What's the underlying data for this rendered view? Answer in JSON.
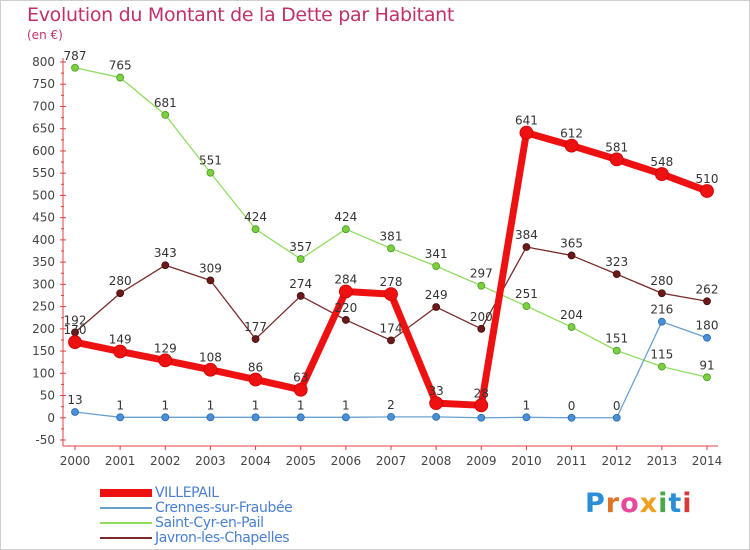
{
  "header": {
    "title": "Evolution du Montant de la Dette par Habitant",
    "unit": "(en €)"
  },
  "logo": {
    "text": "Proxiti",
    "colors": [
      "#2a8fd6",
      "#e0732a",
      "#e84a9a",
      "#f0a020",
      "#4aa84a",
      "#2a8fd6",
      "#d63a3a"
    ]
  },
  "chart_data": {
    "type": "line",
    "title": "Evolution du Montant de la Dette par Habitant",
    "ylabel": "(en €)",
    "xlabel": "",
    "ylim": [
      -50,
      800
    ],
    "yticks": [
      -50,
      0,
      50,
      100,
      150,
      200,
      250,
      300,
      350,
      400,
      450,
      500,
      550,
      600,
      650,
      700,
      750,
      800
    ],
    "grid": false,
    "legend_position": "bottom-left",
    "x": [
      "2000",
      "2001",
      "2002",
      "2003",
      "2004",
      "2005",
      "2006",
      "2007",
      "2008",
      "2009",
      "2010",
      "2011",
      "2012",
      "2013",
      "2014"
    ],
    "series": [
      {
        "name": "VILLEPAIL",
        "color": "#ee1111",
        "values": [
          170,
          149,
          129,
          108,
          86,
          63,
          284,
          278,
          33,
          28,
          641,
          612,
          581,
          548,
          510
        ]
      },
      {
        "name": "Crennes-sur-Fraubée",
        "color": "#6aa0d0",
        "values": [
          13,
          1,
          1,
          1,
          1,
          1,
          1,
          2,
          2,
          0,
          1,
          0,
          0,
          216,
          180
        ]
      },
      {
        "name": "Saint-Cyr-en-Pail",
        "color": "#90dd60",
        "values": [
          787,
          765,
          681,
          551,
          424,
          357,
          424,
          381,
          341,
          297,
          251,
          204,
          151,
          115,
          91
        ]
      },
      {
        "name": "Javron-les-Chapelles",
        "color": "#7a2a2a",
        "values": [
          192,
          280,
          343,
          309,
          177,
          274,
          220,
          174,
          249,
          200,
          384,
          365,
          323,
          280,
          262
        ]
      }
    ],
    "data_labels": [
      [
        "170",
        "149",
        "129",
        "108",
        "86",
        "63",
        "284",
        "278",
        "33",
        "28",
        "641",
        "612",
        "581",
        "548",
        "510"
      ],
      [
        "13",
        "1",
        "1",
        "1",
        "1",
        "1",
        "1",
        "2",
        "",
        "",
        "1",
        "0",
        "0",
        "216",
        "180"
      ],
      [
        "787",
        "765",
        "681",
        "551",
        "424",
        "357",
        "424",
        "381",
        "341",
        "297",
        "251",
        "204",
        "151",
        "115",
        "91"
      ],
      [
        "192",
        "280",
        "343",
        "309",
        "177",
        "274",
        "220",
        "174",
        "249",
        "200",
        "384",
        "365",
        "323",
        "280",
        "262"
      ]
    ]
  }
}
